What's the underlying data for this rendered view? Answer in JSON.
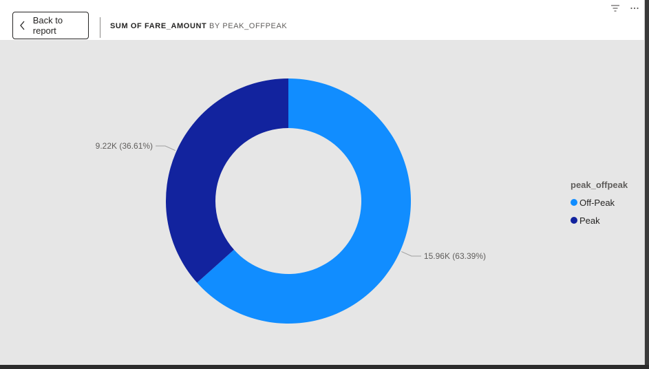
{
  "header": {
    "back_label": "Back to report",
    "title_measure": "SUM OF FARE_AMOUNT",
    "title_group": "BY PEAK_OFFPEAK"
  },
  "icons": {
    "back": "chevron-left-icon",
    "filter": "filter-icon",
    "more": "more-options-icon"
  },
  "legend": {
    "title": "peak_offpeak",
    "items": [
      {
        "label": "Off-Peak",
        "color": "#118dff"
      },
      {
        "label": "Peak",
        "color": "#12239e"
      }
    ]
  },
  "colors": {
    "canvas_bg": "#e6e6e6",
    "header_bg": "#ffffff",
    "leader_line": "#a0a0a0"
  },
  "chart_data": {
    "type": "pie",
    "variant": "donut",
    "title": "",
    "categories": [
      "Off-Peak",
      "Peak"
    ],
    "values": [
      15960,
      9220
    ],
    "percentages": [
      63.39,
      36.61
    ],
    "data_labels": [
      "15.96K (63.39%)",
      "9.22K (36.61%)"
    ],
    "colors": [
      "#118dff",
      "#12239e"
    ],
    "legend_position": "right"
  }
}
